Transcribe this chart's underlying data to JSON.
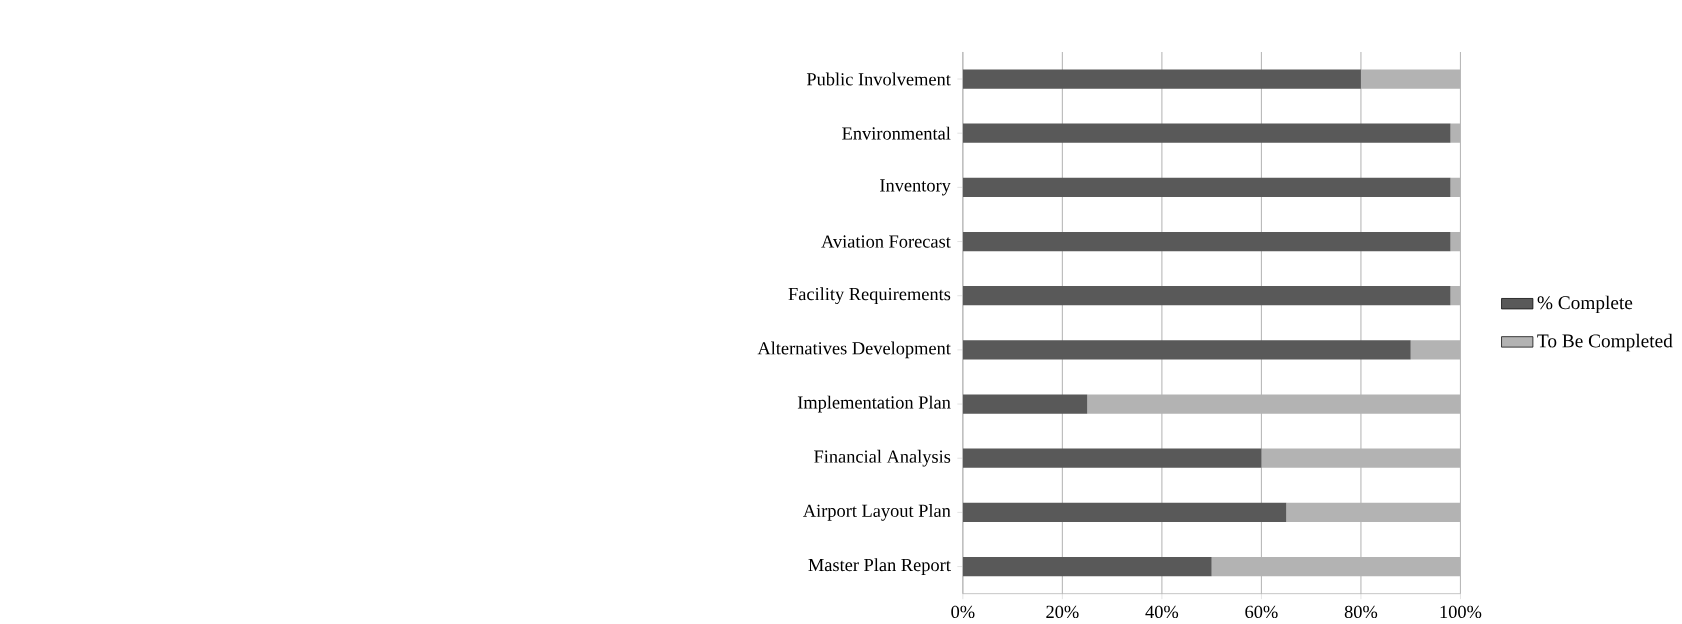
{
  "chart_data": {
    "type": "bar",
    "orientation": "horizontal",
    "stacked": true,
    "categories": [
      "Public Involvement",
      "Environmental",
      "Inventory",
      "Aviation Forecast",
      "Facility Requirements",
      "Alternatives Development",
      "Implementation Plan",
      "Financial Analysis",
      "Airport Layout Plan",
      "Master Plan Report"
    ],
    "series": [
      {
        "name": "% Complete",
        "color": "#595959",
        "values": [
          80,
          98,
          98,
          98,
          98,
          90,
          25,
          60,
          65,
          50
        ]
      },
      {
        "name": "To Be Completed",
        "color": "#b3b3b3",
        "values": [
          20,
          2,
          2,
          2,
          2,
          10,
          75,
          40,
          35,
          50
        ]
      }
    ],
    "xlim": [
      0,
      100
    ],
    "xticks": [
      {
        "value": 0,
        "label": "0%"
      },
      {
        "value": 20,
        "label": "20%"
      },
      {
        "value": 40,
        "label": "40%"
      },
      {
        "value": 60,
        "label": "60%"
      },
      {
        "value": 80,
        "label": "80%"
      },
      {
        "value": 100,
        "label": "100%"
      }
    ],
    "grid": "x",
    "legend": "right"
  }
}
